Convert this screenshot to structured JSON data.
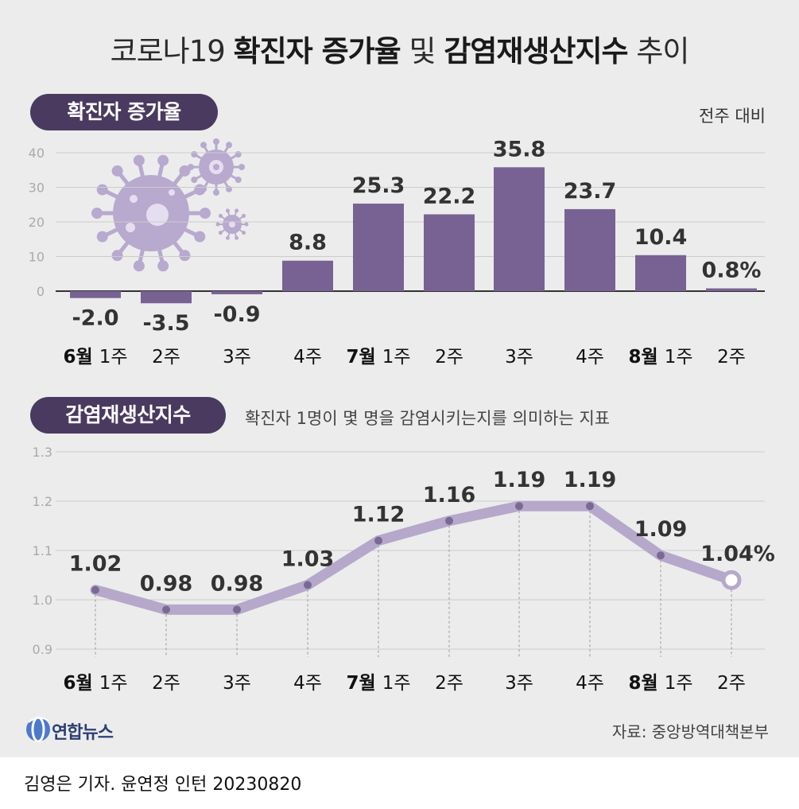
{
  "title": {
    "prefix": "코로나19",
    "bold1": "확진자 증가율",
    "mid": "및",
    "bold2": "감염재생산지수",
    "suffix": "추이"
  },
  "section1": {
    "pill": "확진자 증가율",
    "unit": "전주 대비"
  },
  "section2": {
    "pill": "감염재생산지수",
    "description": "확진자 1명이 몇 명을 감염시키는지를 의미하는 지표"
  },
  "colors": {
    "bar": "#786293",
    "line": "#b5a8ca",
    "pill": "#4a3a5f",
    "virus": "#b8a9cf"
  },
  "chart_data": [
    {
      "type": "bar",
      "title": "확진자 증가율",
      "categories": [
        {
          "month": "6월",
          "week": "1주"
        },
        {
          "month": "",
          "week": "2주"
        },
        {
          "month": "",
          "week": "3주"
        },
        {
          "month": "",
          "week": "4주"
        },
        {
          "month": "7월",
          "week": "1주"
        },
        {
          "month": "",
          "week": "2주"
        },
        {
          "month": "",
          "week": "3주"
        },
        {
          "month": "",
          "week": "4주"
        },
        {
          "month": "8월",
          "week": "1주"
        },
        {
          "month": "",
          "week": "2주"
        }
      ],
      "values": [
        -2.0,
        -3.5,
        -0.9,
        8.8,
        25.3,
        22.2,
        35.8,
        23.7,
        10.4,
        0.8
      ],
      "labels": [
        "-2.0",
        "-3.5",
        "-0.9",
        "8.8",
        "25.3",
        "22.2",
        "35.8",
        "23.7",
        "10.4",
        "0.8%"
      ],
      "yticks": [
        "0",
        "10",
        "20",
        "30",
        "40"
      ],
      "ylim": [
        -5,
        42
      ],
      "unit": "전주 대비"
    },
    {
      "type": "line",
      "title": "감염재생산지수",
      "categories": [
        {
          "month": "6월",
          "week": "1주"
        },
        {
          "month": "",
          "week": "2주"
        },
        {
          "month": "",
          "week": "3주"
        },
        {
          "month": "",
          "week": "4주"
        },
        {
          "month": "7월",
          "week": "1주"
        },
        {
          "month": "",
          "week": "2주"
        },
        {
          "month": "",
          "week": "3주"
        },
        {
          "month": "",
          "week": "4주"
        },
        {
          "month": "8월",
          "week": "1주"
        },
        {
          "month": "",
          "week": "2주"
        }
      ],
      "values": [
        1.02,
        0.98,
        0.98,
        1.03,
        1.12,
        1.16,
        1.19,
        1.19,
        1.09,
        1.04
      ],
      "labels": [
        "1.02",
        "0.98",
        "0.98",
        "1.03",
        "1.12",
        "1.16",
        "1.19",
        "1.19",
        "1.09",
        "1.04%"
      ],
      "yticks": [
        "0.9",
        "1.0",
        "1.1",
        "1.2",
        "1.3"
      ],
      "ylim": [
        0.9,
        1.3
      ]
    }
  ],
  "footer": {
    "logo": "연합뉴스",
    "source": "자료: 중앙방역대책본부",
    "credit": "김영은 기자. 윤연정 인턴  20230820"
  }
}
